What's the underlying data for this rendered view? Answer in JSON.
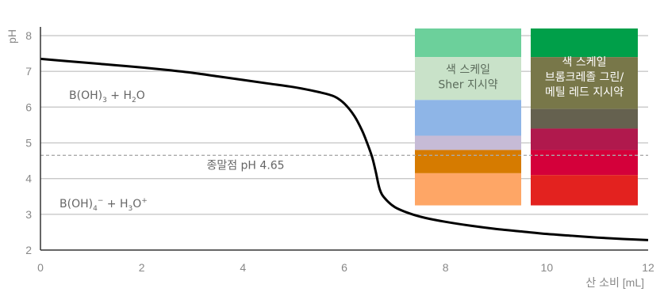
{
  "chart_data": {
    "type": "line",
    "xlabel": "산 소비 [mL]",
    "ylabel": "pH",
    "xlim": [
      0,
      12
    ],
    "ylim": [
      2,
      8.2
    ],
    "xticks": [
      "0",
      "2",
      "4",
      "6",
      "8",
      "10",
      "12"
    ],
    "yticks": [
      "2",
      "3",
      "4",
      "5",
      "6",
      "7",
      "8"
    ],
    "grid": "horizontal",
    "series": [
      {
        "x": [
          0,
          0.5,
          1,
          1.5,
          2,
          2.5,
          3,
          3.5,
          4,
          4.5,
          5,
          5.5,
          5.8,
          6,
          6.2,
          6.35,
          6.45,
          6.55,
          6.62,
          6.7,
          6.8,
          7,
          7.3,
          7.6,
          8,
          8.5,
          9,
          9.5,
          10,
          10.5,
          11,
          11.5,
          12
        ],
        "y": [
          7.35,
          7.29,
          7.23,
          7.17,
          7.11,
          7.04,
          6.96,
          6.86,
          6.76,
          6.66,
          6.56,
          6.42,
          6.3,
          6.1,
          5.75,
          5.35,
          5.0,
          4.6,
          4.2,
          3.7,
          3.45,
          3.2,
          3.02,
          2.9,
          2.79,
          2.68,
          2.59,
          2.52,
          2.45,
          2.4,
          2.35,
          2.31,
          2.28
        ]
      }
    ],
    "endpoint": {
      "ph": 4.65,
      "label": "종말점 pH 4.65"
    },
    "annotations": {
      "upper_species": {
        "base": "B(OH)",
        "sub": "3",
        "middle": " + H",
        "sub2": "2",
        "tail": "O"
      },
      "lower_species": {
        "base": "B(OH)",
        "sub": "4",
        "sup": "−",
        "middle": " + H",
        "sub2": "3",
        "tail": "O",
        "sup2": "+"
      }
    },
    "color_scales": [
      {
        "label_lines": [
          "색 스케일",
          "Sher 지시약"
        ],
        "bands": [
          {
            "from": 7.4,
            "to": 8.2,
            "color": "#6cd09b"
          },
          {
            "from": 6.2,
            "to": 7.4,
            "color": "#c9e2c9"
          },
          {
            "from": 5.2,
            "to": 6.2,
            "color": "#8eb5e7"
          },
          {
            "from": 4.8,
            "to": 5.2,
            "color": "#c6bbd6"
          },
          {
            "from": 4.15,
            "to": 4.8,
            "color": "#d67b00"
          },
          {
            "from": 3.25,
            "to": 4.15,
            "color": "#fea666"
          }
        ]
      },
      {
        "label_lines": [
          "색 스케일",
          "브롬크레졸 그린/",
          "메틸 레드 지시약"
        ],
        "bands": [
          {
            "from": 7.4,
            "to": 8.2,
            "color": "#009f49"
          },
          {
            "from": 5.95,
            "to": 7.4,
            "color": "#787749"
          },
          {
            "from": 5.4,
            "to": 5.95,
            "color": "#65614f"
          },
          {
            "from": 4.8,
            "to": 5.4,
            "color": "#b0194d"
          },
          {
            "from": 4.1,
            "to": 4.8,
            "color": "#d4003a"
          },
          {
            "from": 3.25,
            "to": 4.1,
            "color": "#e3221f"
          }
        ]
      }
    ]
  }
}
